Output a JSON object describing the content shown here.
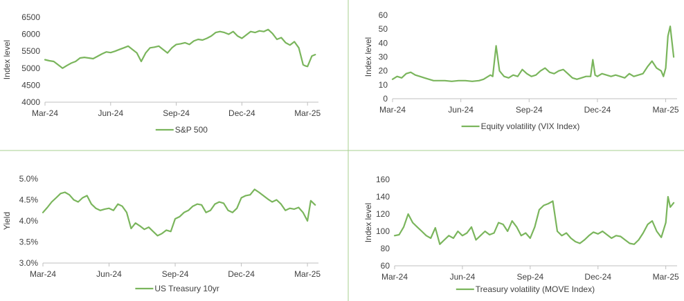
{
  "theme": {
    "line_color": "#7ab55c",
    "axis_color": "#bfbfbf",
    "divider_color": "#a7cf8f",
    "text_color": "#404040"
  },
  "chart_data": [
    {
      "id": "sp500",
      "type": "line",
      "ylabel": "Index level",
      "ylim": [
        4000,
        6500
      ],
      "yticks": [
        4000,
        4500,
        5000,
        5500,
        6000,
        6500
      ],
      "ytick_labels": [
        "4000",
        "4500",
        "5000",
        "5500",
        "6000",
        "6500"
      ],
      "xlim": [
        0,
        12.5
      ],
      "xticks": [
        0,
        3,
        6,
        9,
        12
      ],
      "xtick_labels": [
        "Mar-24",
        "Jun-24",
        "Sep-24",
        "Dec-24",
        "Mar-25"
      ],
      "series": [
        {
          "name": "S&P 500",
          "x": [
            0,
            0.2,
            0.4,
            0.6,
            0.8,
            1.0,
            1.2,
            1.4,
            1.6,
            1.8,
            2.0,
            2.2,
            2.4,
            2.6,
            2.8,
            3.0,
            3.2,
            3.4,
            3.6,
            3.8,
            4.0,
            4.2,
            4.4,
            4.6,
            4.8,
            5.0,
            5.2,
            5.4,
            5.6,
            5.8,
            6.0,
            6.2,
            6.4,
            6.6,
            6.8,
            7.0,
            7.2,
            7.4,
            7.6,
            7.8,
            8.0,
            8.2,
            8.4,
            8.6,
            8.8,
            9.0,
            9.2,
            9.4,
            9.6,
            9.8,
            10.0,
            10.2,
            10.4,
            10.6,
            10.8,
            11.0,
            11.2,
            11.4,
            11.6,
            11.8,
            11.9,
            12.0,
            12.2,
            12.35
          ],
          "y": [
            5250,
            5220,
            5200,
            5100,
            5000,
            5080,
            5150,
            5200,
            5300,
            5320,
            5300,
            5280,
            5350,
            5420,
            5480,
            5460,
            5500,
            5550,
            5600,
            5650,
            5550,
            5450,
            5200,
            5450,
            5600,
            5620,
            5650,
            5550,
            5450,
            5600,
            5700,
            5720,
            5750,
            5700,
            5800,
            5850,
            5830,
            5880,
            5950,
            6050,
            6080,
            6050,
            6000,
            6080,
            5950,
            5880,
            5980,
            6080,
            6050,
            6100,
            6080,
            6140,
            6020,
            5850,
            5900,
            5750,
            5680,
            5780,
            5600,
            5100,
            5070,
            5050,
            5360,
            5400
          ]
        }
      ],
      "legend_position": "bottom"
    },
    {
      "id": "vix",
      "type": "line",
      "ylabel": "Index level",
      "ylim": [
        0,
        60
      ],
      "yticks": [
        0,
        10,
        20,
        30,
        40,
        50,
        60
      ],
      "ytick_labels": [
        "0",
        "10",
        "20",
        "30",
        "40",
        "50",
        "60"
      ],
      "xlim": [
        0,
        12.5
      ],
      "xticks": [
        0,
        3,
        6,
        9,
        12
      ],
      "xtick_labels": [
        "Mar-24",
        "Jun-24",
        "Sep-24",
        "Dec-24",
        "Mar-25"
      ],
      "series": [
        {
          "name": "Equity volatility (VIX Index)",
          "x": [
            0,
            0.2,
            0.4,
            0.6,
            0.8,
            1.0,
            1.2,
            1.4,
            1.6,
            1.8,
            2.0,
            2.3,
            2.6,
            2.9,
            3.2,
            3.5,
            3.8,
            4.0,
            4.2,
            4.3,
            4.4,
            4.55,
            4.7,
            4.9,
            5.1,
            5.3,
            5.5,
            5.7,
            5.9,
            6.1,
            6.3,
            6.5,
            6.7,
            6.9,
            7.1,
            7.3,
            7.5,
            7.7,
            7.9,
            8.1,
            8.3,
            8.5,
            8.7,
            8.8,
            8.9,
            9.0,
            9.2,
            9.4,
            9.6,
            9.8,
            10.0,
            10.2,
            10.4,
            10.6,
            10.8,
            11.0,
            11.2,
            11.4,
            11.6,
            11.8,
            11.9,
            12.0,
            12.1,
            12.2,
            12.35
          ],
          "y": [
            14,
            16,
            15,
            18,
            19,
            17,
            16,
            15,
            14,
            13,
            13,
            13,
            12.5,
            13,
            13,
            12.5,
            13,
            14,
            16,
            17,
            16,
            38,
            20,
            16,
            15,
            17,
            16,
            21,
            18,
            16,
            17,
            20,
            22,
            19,
            18,
            20,
            21,
            18,
            15,
            14,
            15,
            16,
            16,
            28,
            17,
            16,
            18,
            17,
            16,
            17,
            16,
            15,
            18,
            16,
            17,
            18,
            23,
            27,
            22,
            20,
            16,
            22,
            45,
            52,
            30
          ]
        }
      ],
      "legend_position": "bottom"
    },
    {
      "id": "ust10",
      "type": "line",
      "ylabel": "Yield",
      "ylim": [
        3.0,
        5.0
      ],
      "yticks": [
        3.0,
        3.5,
        4.0,
        4.5,
        5.0
      ],
      "ytick_labels": [
        "3.0%",
        "3.5%",
        "4.0%",
        "4.5%",
        "5.0%"
      ],
      "xlim": [
        0,
        12.5
      ],
      "xticks": [
        0,
        3,
        6,
        9,
        12
      ],
      "xtick_labels": [
        "Mar-24",
        "Jun-24",
        "Sep-24",
        "Dec-24",
        "Mar-25"
      ],
      "series": [
        {
          "name": "US Treasury 10yr",
          "x": [
            0,
            0.2,
            0.4,
            0.6,
            0.8,
            1.0,
            1.2,
            1.4,
            1.6,
            1.8,
            2.0,
            2.2,
            2.4,
            2.6,
            2.8,
            3.0,
            3.2,
            3.4,
            3.6,
            3.8,
            4.0,
            4.2,
            4.4,
            4.6,
            4.8,
            5.0,
            5.2,
            5.4,
            5.6,
            5.8,
            6.0,
            6.2,
            6.4,
            6.6,
            6.8,
            7.0,
            7.2,
            7.4,
            7.6,
            7.8,
            8.0,
            8.2,
            8.4,
            8.6,
            8.8,
            9.0,
            9.2,
            9.4,
            9.6,
            9.8,
            10.0,
            10.2,
            10.4,
            10.6,
            10.8,
            11.0,
            11.2,
            11.4,
            11.6,
            11.8,
            12.0,
            12.15,
            12.35
          ],
          "y": [
            4.2,
            4.32,
            4.45,
            4.55,
            4.65,
            4.68,
            4.62,
            4.5,
            4.45,
            4.55,
            4.6,
            4.4,
            4.3,
            4.25,
            4.28,
            4.3,
            4.25,
            4.4,
            4.35,
            4.2,
            3.82,
            3.95,
            3.88,
            3.8,
            3.85,
            3.75,
            3.65,
            3.7,
            3.78,
            3.75,
            4.05,
            4.1,
            4.2,
            4.25,
            4.35,
            4.4,
            4.38,
            4.2,
            4.25,
            4.4,
            4.45,
            4.42,
            4.25,
            4.2,
            4.3,
            4.55,
            4.6,
            4.62,
            4.75,
            4.68,
            4.6,
            4.52,
            4.45,
            4.5,
            4.4,
            4.25,
            4.3,
            4.28,
            4.32,
            4.2,
            4.0,
            4.48,
            4.38
          ]
        }
      ],
      "legend_position": "bottom"
    },
    {
      "id": "move",
      "type": "line",
      "ylabel": "Index level",
      "ylim": [
        60,
        160
      ],
      "yticks": [
        60,
        80,
        100,
        120,
        140,
        160
      ],
      "ytick_labels": [
        "60",
        "80",
        "100",
        "120",
        "140",
        "160"
      ],
      "xlim": [
        0,
        12.5
      ],
      "xticks": [
        0,
        3,
        6,
        9,
        12
      ],
      "xtick_labels": [
        "Mar-24",
        "Jun-24",
        "Sep-24",
        "Dec-24",
        "Mar-25"
      ],
      "series": [
        {
          "name": "Treasury volatility (MOVE Index)",
          "x": [
            0,
            0.2,
            0.4,
            0.6,
            0.8,
            1.0,
            1.2,
            1.4,
            1.6,
            1.8,
            2.0,
            2.2,
            2.4,
            2.6,
            2.8,
            3.0,
            3.2,
            3.4,
            3.6,
            3.8,
            4.0,
            4.2,
            4.4,
            4.6,
            4.8,
            5.0,
            5.2,
            5.4,
            5.6,
            5.8,
            6.0,
            6.2,
            6.4,
            6.6,
            6.8,
            7.0,
            7.2,
            7.4,
            7.6,
            7.8,
            8.0,
            8.2,
            8.4,
            8.6,
            8.8,
            9.0,
            9.2,
            9.4,
            9.6,
            9.8,
            10.0,
            10.2,
            10.4,
            10.6,
            10.8,
            11.0,
            11.2,
            11.4,
            11.6,
            11.8,
            12.0,
            12.1,
            12.2,
            12.35
          ],
          "y": [
            95,
            96,
            105,
            120,
            110,
            105,
            100,
            95,
            92,
            104,
            85,
            90,
            95,
            92,
            100,
            95,
            98,
            105,
            90,
            95,
            100,
            96,
            98,
            110,
            108,
            100,
            112,
            105,
            95,
            98,
            92,
            105,
            125,
            130,
            132,
            135,
            100,
            95,
            98,
            92,
            88,
            86,
            90,
            95,
            99,
            97,
            100,
            96,
            92,
            95,
            94,
            90,
            86,
            85,
            90,
            98,
            108,
            112,
            100,
            93,
            110,
            140,
            128,
            133
          ]
        }
      ],
      "legend_position": "bottom"
    }
  ]
}
